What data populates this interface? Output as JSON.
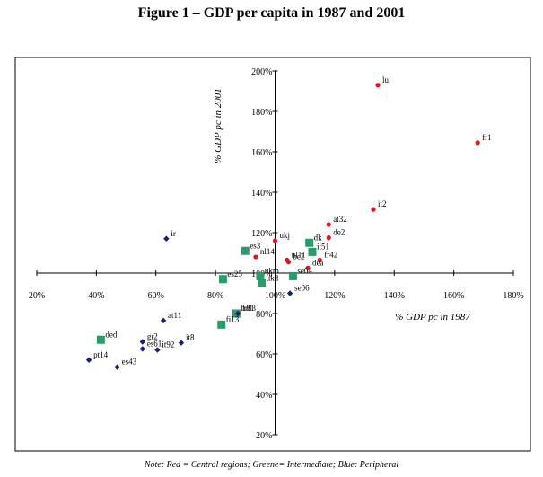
{
  "title": "Figure 1 – GDP per capita in 1987 and 2001",
  "note": "Note: Red = Central regions; Greene= Intermediate; Blue:  Peripheral",
  "chart_data": {
    "type": "scatter",
    "xlabel": "% GDP pc in 1987",
    "ylabel": "% GDP pc in 2001",
    "xlim": [
      20,
      180
    ],
    "ylim": [
      20,
      200
    ],
    "axis_cross": {
      "x": 100,
      "y": 100
    },
    "xticks": [
      "20%",
      "40%",
      "60%",
      "80%",
      "100%",
      "120%",
      "140%",
      "160%",
      "180%"
    ],
    "yticks": [
      "20%",
      "40%",
      "60%",
      "80%",
      "100%",
      "120%",
      "140%",
      "160%",
      "180%",
      "200%"
    ],
    "grid": false,
    "series": [
      {
        "color": "#e0161c",
        "marker": "circle",
        "points": [
          {
            "label": "lu",
            "x": 134.5,
            "y": 193
          },
          {
            "label": "fr1",
            "x": 168,
            "y": 164.5
          },
          {
            "label": "it2",
            "x": 133,
            "y": 131.5
          },
          {
            "label": "at32",
            "x": 118,
            "y": 124
          },
          {
            "label": "de2",
            "x": 118,
            "y": 117.5
          },
          {
            "label": "ukj",
            "x": 100,
            "y": 116
          },
          {
            "label": "nl14",
            "x": 93.5,
            "y": 108
          },
          {
            "label": "nl11",
            "x": 104,
            "y": 106.5
          },
          {
            "label": "be2",
            "x": 104.5,
            "y": 105.5
          },
          {
            "label": "fr42",
            "x": 115,
            "y": 106.5
          },
          {
            "label": "dea",
            "x": 111,
            "y": 102.5
          }
        ]
      },
      {
        "color": "#2a9b6a",
        "marker": "square",
        "points": [
          {
            "label": "es3",
            "x": 90,
            "y": 111
          },
          {
            "label": "dk",
            "x": 111.5,
            "y": 115
          },
          {
            "label": "it51",
            "x": 112.5,
            "y": 110.5
          },
          {
            "label": "es25",
            "x": 82.5,
            "y": 97
          },
          {
            "label": "ukd",
            "x": 95.5,
            "y": 95
          },
          {
            "label": "ukm",
            "x": 95,
            "y": 98.5
          },
          {
            "label": "se04",
            "x": 106,
            "y": 98.5
          },
          {
            "label": "fr81",
            "x": 87,
            "y": 80
          },
          {
            "label": "fi13",
            "x": 82,
            "y": 74.5
          },
          {
            "label": "ded",
            "x": 41.5,
            "y": 67
          }
        ]
      },
      {
        "color": "#1a1f7a",
        "marker": "diamond",
        "points": [
          {
            "label": "ir",
            "x": 63.5,
            "y": 117
          },
          {
            "label": "se06",
            "x": 105,
            "y": 90
          },
          {
            "label": "fr83",
            "x": 87.5,
            "y": 80
          },
          {
            "label": "at11",
            "x": 62.5,
            "y": 76.5
          },
          {
            "label": "gr2",
            "x": 55.5,
            "y": 66
          },
          {
            "label": "es61",
            "x": 55.5,
            "y": 62.5
          },
          {
            "label": "it8",
            "x": 68.5,
            "y": 65.5
          },
          {
            "label": "it92",
            "x": 60.5,
            "y": 62
          },
          {
            "label": "pt14",
            "x": 37.5,
            "y": 57
          },
          {
            "label": "es43",
            "x": 47,
            "y": 53.5
          }
        ]
      }
    ]
  }
}
